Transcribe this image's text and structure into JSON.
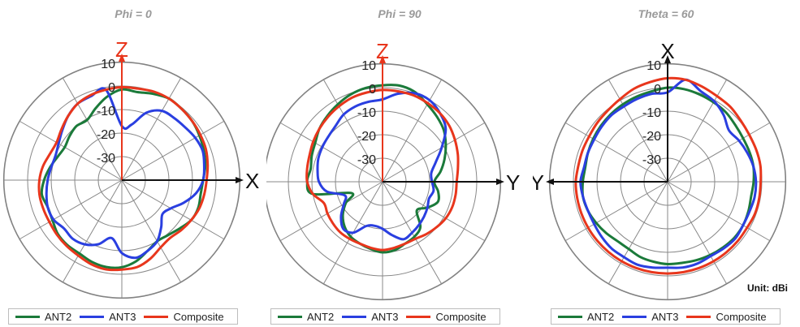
{
  "colors": {
    "ANT2": "#1b7a3a",
    "ANT3": "#2a3fe0",
    "Composite": "#e8361c",
    "grid": "#888888",
    "tick": "#666666"
  },
  "unit_label": "Unit: dBi",
  "chart_data": [
    {
      "type": "polar",
      "title": "Phi = 0",
      "axis_labels": {
        "vertical": "Z",
        "horizontal": "X",
        "vertical_color": "#e8361c",
        "horizontal_color": "#111111"
      },
      "r_ticks": [
        "10",
        "0",
        "-10",
        "-20",
        "-30"
      ],
      "rlim": [
        -40,
        10
      ],
      "angle_convention": "degrees clockwise from vertical axis",
      "legend": [
        "ANT2",
        "ANT3",
        "Composite"
      ],
      "series": [
        {
          "name": "ANT2",
          "gain": [
            -1.5,
            -2,
            -1,
            0,
            -0.5,
            -1,
            -2,
            -3,
            -4,
            -5.5,
            -6,
            -5.5,
            -6,
            -8,
            -9.5,
            -10,
            -8,
            -5,
            -3,
            -2.5,
            -3,
            -4,
            -4,
            -4.5,
            -6,
            -6.5,
            -5.5,
            -7,
            -9,
            -11,
            -12,
            -11,
            -10,
            -10.5,
            -7.5,
            -4
          ]
        },
        {
          "name": "ANT3",
          "gain": [
            -17,
            -16,
            -9.5,
            -6,
            -5.5,
            -5,
            -4,
            -3.5,
            -4.5,
            -5.5,
            -8,
            -12,
            -16,
            -17.5,
            -14,
            -10,
            -8,
            -6.5,
            -9,
            -15,
            -11,
            -8.5,
            -7.5,
            -8,
            -6.5,
            -6.5,
            -7.5,
            -8.5,
            -9.5,
            -10,
            -9,
            -7,
            -4.5,
            -2.5,
            -2,
            -1
          ]
        },
        {
          "name": "Composite",
          "gain": [
            -0.5,
            -0.5,
            0,
            0,
            -0.5,
            -1,
            -1.5,
            -2,
            -3,
            -4,
            -4.5,
            -5,
            -6,
            -7,
            -8,
            -7,
            -4.5,
            -2.5,
            -2,
            -1.5,
            -2,
            -3,
            -3.5,
            -4,
            -4.5,
            -4.5,
            -4.5,
            -5,
            -6,
            -7.5,
            -8,
            -6.5,
            -4.5,
            -2.5,
            -1.5,
            -1
          ]
        }
      ]
    },
    {
      "type": "polar",
      "title": "Phi = 90",
      "axis_labels": {
        "vertical": "Z",
        "horizontal": "Y",
        "vertical_color": "#e8361c",
        "horizontal_color": "#111111"
      },
      "r_ticks": [
        "10",
        "0",
        "-10",
        "-20",
        "-30"
      ],
      "rlim": [
        -40,
        10
      ],
      "angle_convention": "degrees clockwise from vertical axis",
      "legend": [
        "ANT2",
        "ANT3",
        "Composite"
      ],
      "series": [
        {
          "name": "ANT2",
          "gain": [
            1,
            1.5,
            0.5,
            -2,
            -4,
            -6,
            -9,
            -12,
            -15,
            -18,
            -16,
            -15,
            -18,
            -21,
            -15,
            -13,
            -12,
            -10.5,
            -10,
            -11,
            -12,
            -13,
            -15,
            -18,
            -22,
            -26,
            -10,
            -8,
            -9,
            -8,
            -7,
            -5,
            -3.5,
            -2,
            -0.5,
            0.5
          ]
        },
        {
          "name": "ANT3",
          "gain": [
            -5,
            -2,
            0,
            0,
            -2,
            -5,
            -11,
            -16,
            -19,
            -19,
            -18,
            -19,
            -18,
            -17,
            -16,
            -15,
            -14,
            -17,
            -20,
            -21,
            -20,
            -15,
            -14,
            -17,
            -21,
            -23,
            -16,
            -13,
            -12,
            -11,
            -10.5,
            -10,
            -9,
            -7,
            -6,
            -5.5
          ]
        },
        {
          "name": "Composite",
          "gain": [
            -1,
            -1,
            -1,
            -1.5,
            -2,
            -3,
            -4.5,
            -6,
            -7.5,
            -8.5,
            -8.5,
            -8.5,
            -9,
            -10,
            -11,
            -12,
            -12,
            -11.5,
            -11,
            -11.5,
            -12,
            -12,
            -12,
            -12.5,
            -13,
            -13.5,
            -10,
            -8,
            -7.5,
            -7,
            -6,
            -5,
            -4,
            -3,
            -2,
            -1.5
          ]
        }
      ]
    },
    {
      "type": "polar",
      "title": "Theta = 60",
      "axis_labels": {
        "vertical": "X",
        "horizontal": "Y",
        "vertical_color": "#111111",
        "horizontal_color": "#111111"
      },
      "r_ticks": [
        "10",
        "0",
        "-10",
        "-20",
        "-30"
      ],
      "rlim": [
        -40,
        10
      ],
      "angle_convention": "degrees clockwise from vertical axis",
      "legend": [
        "ANT2",
        "ANT3",
        "Composite"
      ],
      "series": [
        {
          "name": "ANT2",
          "gain": [
            0,
            0,
            -0.5,
            -1,
            -1.5,
            -2.5,
            -3,
            -3,
            -3,
            -3.5,
            -4,
            -3.5,
            -3,
            -3,
            -3.5,
            -4,
            -4.5,
            -5,
            -5,
            -5.5,
            -6,
            -7,
            -7,
            -6,
            -5,
            -4,
            -3.5,
            -4,
            -4.5,
            -4,
            -3.5,
            -3,
            -2.5,
            -2,
            -1.5,
            -1
          ]
        },
        {
          "name": "ANT3",
          "gain": [
            -2,
            4,
            1,
            -0.5,
            -3,
            -6,
            -5,
            -4,
            -3,
            -2.5,
            -2.5,
            -3,
            -3,
            -2.5,
            -3,
            -3.5,
            -3,
            -3,
            -3.5,
            -3,
            -2.5,
            -3,
            -3,
            -3.5,
            -4,
            -4,
            -3.5,
            -3,
            -4,
            -4,
            -4,
            -3.5,
            -3,
            -3,
            -2.5,
            -2
          ]
        },
        {
          "name": "Composite",
          "gain": [
            4,
            4,
            3,
            2,
            1.5,
            0.5,
            0,
            0,
            0,
            -0.5,
            -0.5,
            -0.5,
            -1,
            -1,
            -1,
            -1,
            -1,
            -1,
            -1,
            -1,
            -1,
            -1,
            -1,
            -1,
            -1,
            -1,
            -1,
            -1,
            -1.5,
            -1.5,
            -1.5,
            -1,
            -0.5,
            0.5,
            2,
            3
          ]
        }
      ]
    }
  ]
}
